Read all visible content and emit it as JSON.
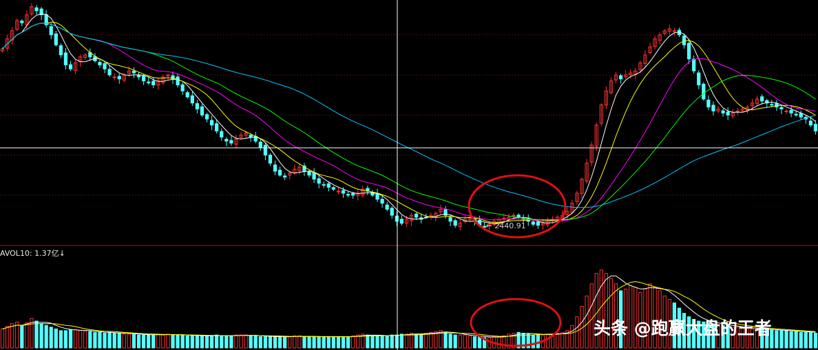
{
  "chart_data": {
    "type": "candlestick",
    "price_panel": {
      "ylim": [
        2380,
        3560
      ],
      "annotation_low": "2440.91",
      "annotation_low_value": 2440.91,
      "close": [
        3330,
        3380,
        3420,
        3470,
        3460,
        3500,
        3540,
        3520,
        3500,
        3450,
        3400,
        3350,
        3300,
        3250,
        3230,
        3260,
        3290,
        3300,
        3290,
        3270,
        3250,
        3230,
        3200,
        3190,
        3180,
        3200,
        3220,
        3210,
        3190,
        3170,
        3160,
        3150,
        3170,
        3190,
        3200,
        3180,
        3150,
        3120,
        3090,
        3060,
        3030,
        3000,
        2980,
        2950,
        2920,
        2890,
        2870,
        2860,
        2880,
        2900,
        2910,
        2890,
        2870,
        2840,
        2800,
        2760,
        2720,
        2700,
        2690,
        2710,
        2730,
        2740,
        2720,
        2700,
        2680,
        2660,
        2650,
        2640,
        2630,
        2620,
        2610,
        2600,
        2600,
        2610,
        2630,
        2620,
        2600,
        2580,
        2560,
        2530,
        2500,
        2470,
        2460,
        2480,
        2500,
        2490,
        2480,
        2490,
        2500,
        2510,
        2530,
        2500,
        2470,
        2450,
        2460,
        2480,
        2490,
        2470,
        2450,
        2440,
        2455,
        2470,
        2480,
        2485,
        2490,
        2500,
        2490,
        2480,
        2470,
        2455,
        2450,
        2460,
        2470,
        2480,
        2490,
        2500,
        2520,
        2560,
        2610,
        2680,
        2760,
        2850,
        2950,
        3050,
        3120,
        3170,
        3200,
        3180,
        3200,
        3210,
        3220,
        3260,
        3300,
        3340,
        3380,
        3400,
        3420,
        3430,
        3420,
        3400,
        3350,
        3280,
        3220,
        3150,
        3080,
        3040,
        3020,
        3030,
        3010,
        3000,
        3010,
        3020,
        3030,
        3040,
        3060,
        3080,
        3070,
        3060,
        3050,
        3040,
        3030,
        3020,
        3010,
        3000,
        2990,
        2980,
        2950,
        2920
      ],
      "ma_series": [
        {
          "window": 5,
          "color": "#ffffff"
        },
        {
          "window": 10,
          "color": "#ffff00"
        },
        {
          "window": 20,
          "color": "#ff00ff"
        },
        {
          "window": 30,
          "color": "#00ff00"
        },
        {
          "window": 60,
          "color": "#00c8ff"
        }
      ]
    },
    "volume_panel": {
      "indicator_label": "AVOL10: 1.37亿↓",
      "unit": "亿",
      "ylim": [
        0,
        10
      ],
      "volume": [
        2.2,
        2.5,
        2.8,
        3.0,
        2.6,
        2.9,
        3.4,
        3.1,
        2.8,
        2.6,
        2.4,
        2.2,
        2.0,
        2.0,
        2.1,
        2.1,
        2.0,
        1.9,
        1.9,
        1.8,
        1.8,
        1.7,
        1.8,
        1.7,
        1.7,
        1.6,
        1.6,
        1.6,
        1.5,
        1.5,
        1.5,
        1.5,
        1.6,
        1.5,
        1.6,
        1.5,
        1.5,
        1.5,
        1.4,
        1.4,
        1.4,
        1.4,
        1.4,
        1.4,
        1.5,
        1.4,
        1.4,
        1.4,
        1.5,
        1.5,
        1.5,
        1.4,
        1.4,
        1.3,
        1.3,
        1.3,
        1.3,
        1.3,
        1.3,
        1.3,
        1.4,
        1.4,
        1.3,
        1.3,
        1.3,
        1.3,
        1.3,
        1.3,
        1.3,
        1.3,
        1.3,
        1.3,
        1.4,
        1.5,
        1.6,
        1.5,
        1.4,
        1.4,
        1.4,
        1.4,
        1.5,
        1.5,
        1.6,
        1.6,
        1.7,
        1.6,
        1.6,
        1.7,
        1.8,
        1.9,
        2.0,
        1.8,
        1.6,
        1.5,
        1.5,
        1.5,
        1.4,
        1.3,
        1.3,
        1.2,
        1.2,
        1.3,
        1.3,
        1.4,
        1.6,
        1.7,
        1.8,
        1.7,
        1.6,
        1.5,
        1.5,
        1.5,
        1.6,
        1.6,
        1.7,
        1.8,
        2.0,
        2.6,
        3.6,
        4.8,
        6.0,
        7.4,
        8.6,
        9.0,
        8.6,
        8.0,
        7.4,
        6.6,
        6.8,
        7.2,
        7.0,
        6.4,
        6.8,
        7.4,
        7.0,
        6.6,
        6.0,
        5.6,
        5.2,
        4.6,
        4.0,
        3.6,
        3.3,
        3.1,
        3.0,
        2.9,
        2.8,
        2.7,
        2.6,
        2.5,
        2.4,
        2.4,
        2.3,
        2.3,
        2.2,
        2.2,
        2.1,
        2.1,
        2.1,
        2.0,
        2.0,
        2.0,
        1.9,
        1.9,
        1.8,
        1.8,
        1.8,
        1.7
      ]
    },
    "watermark": "头条 @跑赢大盘的王者",
    "bottom_strip_text": "",
    "colors": {
      "background": "#000000",
      "up": "#ff3232",
      "down": "#54ffff",
      "grid": "#8a1a1a",
      "crosshair": "#ffffff",
      "highlight_circle": "#e01010",
      "separator": "#b01818"
    }
  }
}
